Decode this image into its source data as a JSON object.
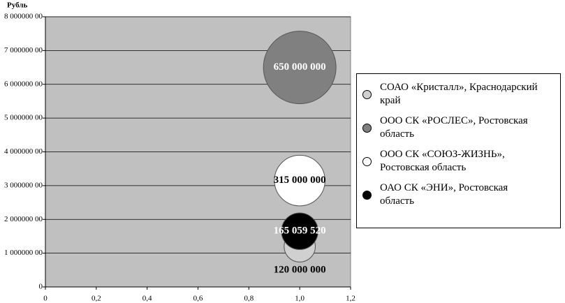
{
  "chart_data": {
    "type": "bubble",
    "y_label": "Рубль",
    "xlim": [
      0,
      1.2
    ],
    "xticks": [
      0,
      {
        "value": 0.2,
        "label": "0,2"
      },
      {
        "value": 0.4,
        "label": "0,4"
      },
      {
        "value": 0.6,
        "label": "0,6"
      },
      {
        "value": 0.8,
        "label": "0,8"
      },
      {
        "value": 1.0,
        "label": "1,0"
      },
      {
        "value": 1.2,
        "label": "1,2"
      }
    ],
    "ylim": [
      0,
      8000000
    ],
    "yticks": [
      0,
      {
        "value": 1000000,
        "label": "1 000000 00"
      },
      {
        "value": 2000000,
        "label": "2 000000 00"
      },
      {
        "value": 3000000,
        "label": "3 000000 00"
      },
      {
        "value": 4000000,
        "label": "4 000000 00"
      },
      {
        "value": 5000000,
        "label": "5 000000 00"
      },
      {
        "value": 6000000,
        "label": "6 000000 00"
      },
      {
        "value": 7000000,
        "label": "7 000000 00"
      },
      {
        "value": 8000000,
        "label": "8 000000 00"
      }
    ],
    "grid": true,
    "legend": "right",
    "series": [
      {
        "name": "СОАО «Кристалл», Краснодарский край",
        "color": "#d0d0d0",
        "x": [
          1.0
        ],
        "values": [
          1200000
        ],
        "sizes": [
          120000000
        ],
        "value_labels": [
          "120 000 000"
        ]
      },
      {
        "name": "ООО СК «РОСЛЕС», Ростовская область",
        "color": "#808080",
        "x": [
          1.0
        ],
        "values": [
          6500000
        ],
        "sizes": [
          650000000
        ],
        "value_labels": [
          "650 000 000"
        ]
      },
      {
        "name": "ООО СК «СОЮЗ-ЖИЗНЬ», Ростовская область",
        "color": "#ffffff",
        "x": [
          1.0
        ],
        "values": [
          3150000
        ],
        "sizes": [
          315000000
        ],
        "value_labels": [
          "315 000 000"
        ]
      },
      {
        "name": "ОАО СК «ЭНИ», Ростовская область",
        "color": "#000000",
        "x": [
          1.0
        ],
        "values": [
          1650000
        ],
        "sizes": [
          165059520
        ],
        "value_labels": [
          "165 059 520"
        ]
      }
    ]
  }
}
